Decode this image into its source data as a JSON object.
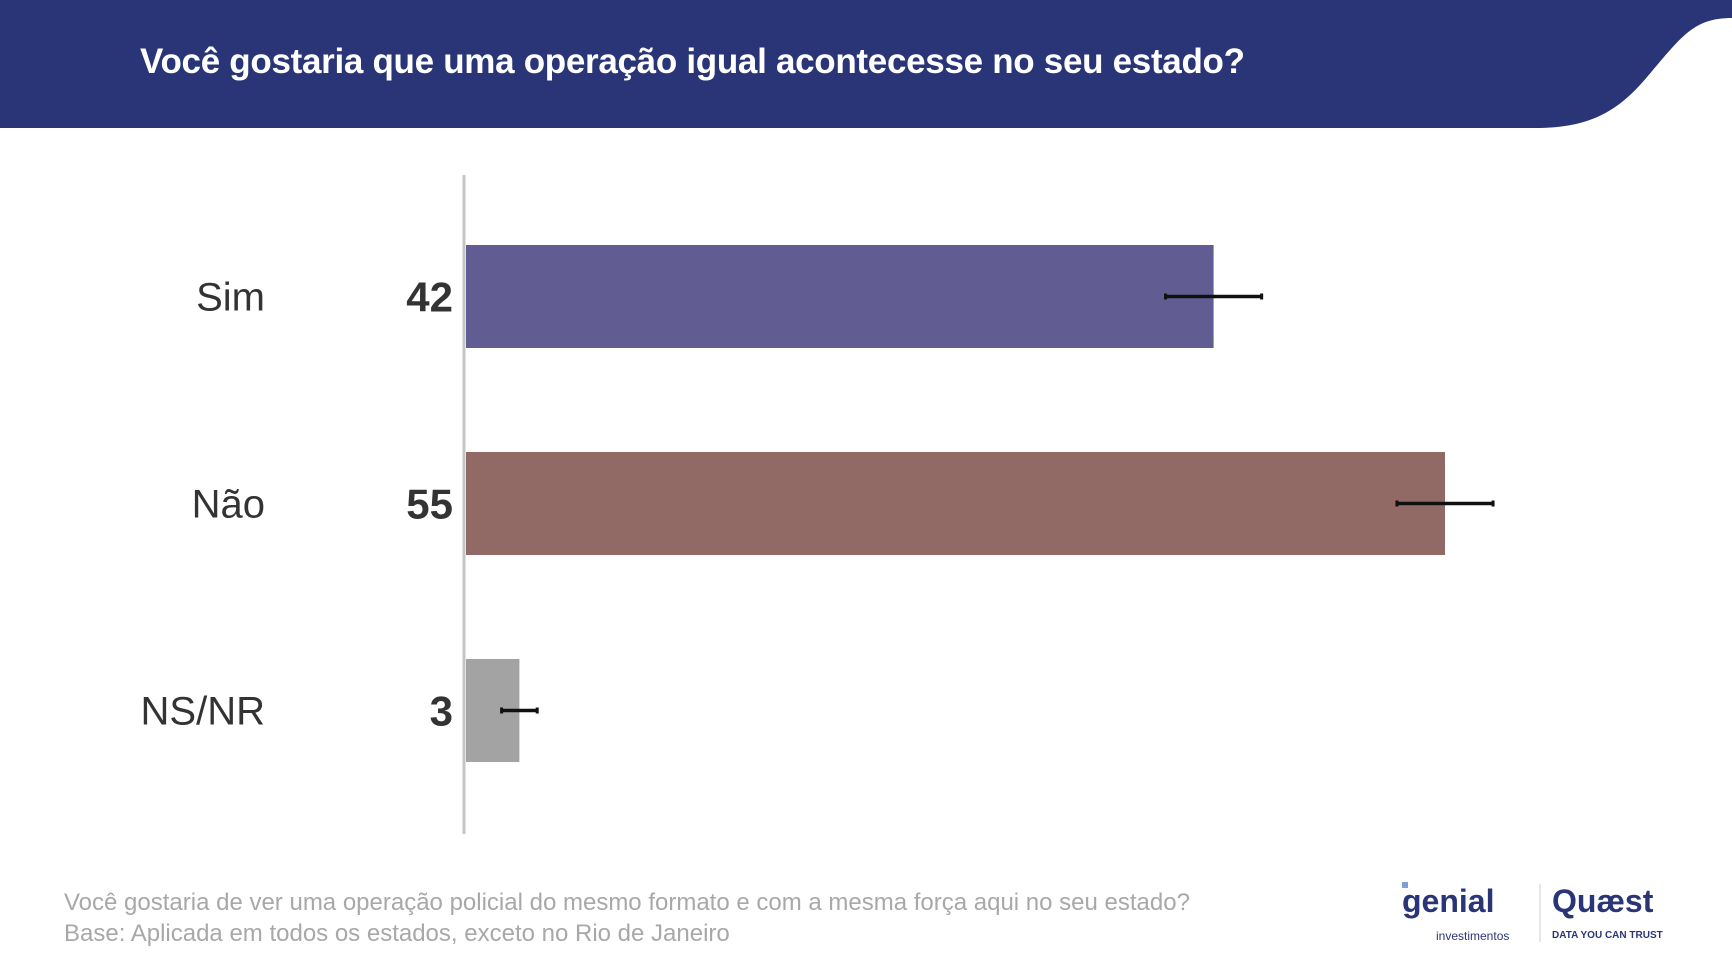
{
  "header": {
    "title": "Você gostaria que uma operação igual acontecesse no seu estado?",
    "color": "#2a3577"
  },
  "chart_data": {
    "type": "bar",
    "orientation": "horizontal",
    "title": "Você gostaria que uma operação igual acontecesse no seu estado?",
    "categories": [
      "Sim",
      "Não",
      "NS/NR"
    ],
    "values": [
      42,
      55,
      3
    ],
    "value_labels": [
      "42",
      "55",
      "3"
    ],
    "error_margin": [
      2.7,
      2.7,
      1.0
    ],
    "colors": [
      "#615d93",
      "#926a65",
      "#a3a3a3"
    ],
    "xlim": [
      0,
      60
    ],
    "grid": false,
    "legend": "none",
    "unit": "%"
  },
  "footer": {
    "question": "Você gostaria de ver uma operação policial do mesmo formato e com a mesma força aqui no seu estado?",
    "base": "Base: Aplicada em todos os estados, exceto no Rio de Janeiro"
  },
  "logos": {
    "genial": "genial",
    "genial_sub": "investimentos",
    "quaest": "Quæst",
    "quaest_sub": "DATA YOU CAN TRUST",
    "color": "#2a3577"
  }
}
